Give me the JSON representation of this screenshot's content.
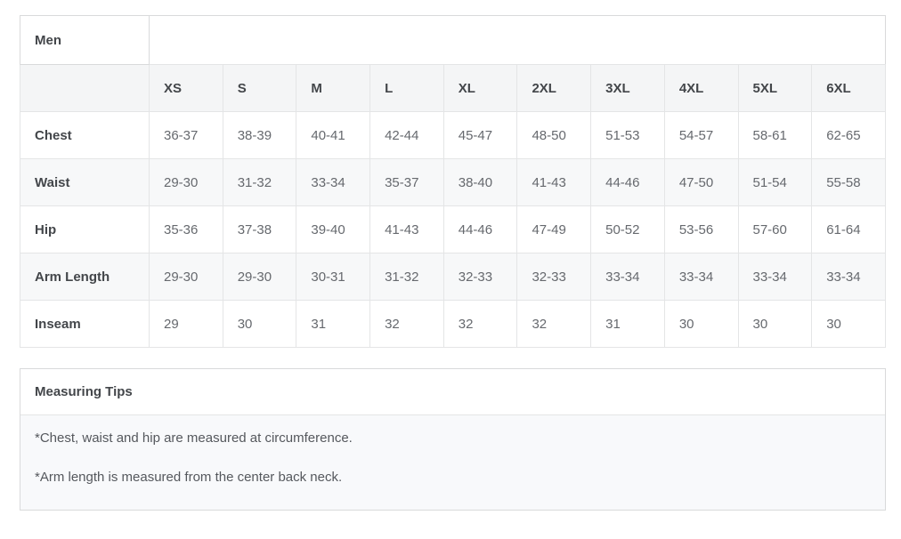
{
  "size_chart": {
    "title": "Men",
    "columns": [
      "XS",
      "S",
      "M",
      "L",
      "XL",
      "2XL",
      "3XL",
      "4XL",
      "5XL",
      "6XL"
    ],
    "rows": [
      {
        "label": "Chest",
        "values": [
          "36-37",
          "38-39",
          "40-41",
          "42-44",
          "45-47",
          "48-50",
          "51-53",
          "54-57",
          "58-61",
          "62-65"
        ]
      },
      {
        "label": "Waist",
        "values": [
          "29-30",
          "31-32",
          "33-34",
          "35-37",
          "38-40",
          "41-43",
          "44-46",
          "47-50",
          "51-54",
          "55-58"
        ]
      },
      {
        "label": "Hip",
        "values": [
          "35-36",
          "37-38",
          "39-40",
          "41-43",
          "44-46",
          "47-49",
          "50-52",
          "53-56",
          "57-60",
          "61-64"
        ]
      },
      {
        "label": "Arm Length",
        "values": [
          "29-30",
          "29-30",
          "30-31",
          "31-32",
          "32-33",
          "32-33",
          "33-34",
          "33-34",
          "33-34",
          "33-34"
        ]
      },
      {
        "label": "Inseam",
        "values": [
          "29",
          "30",
          "31",
          "32",
          "32",
          "32",
          "31",
          "30",
          "30",
          "30"
        ]
      }
    ]
  },
  "measuring_tips": {
    "title": "Measuring Tips",
    "notes": [
      "*Chest, waist and hip are measured at circumference.",
      "*Arm length is measured from the center back neck."
    ]
  },
  "colors": {
    "outer_border": "#d9dadb",
    "inner_border": "#e4e5e6",
    "header_row_bg": "#f4f5f6",
    "alt_row_bg": "#f7f8f9",
    "tips_body_bg": "#f8f9fb",
    "label_text": "#43464a",
    "value_text": "#66696e",
    "note_text": "#55585d"
  }
}
